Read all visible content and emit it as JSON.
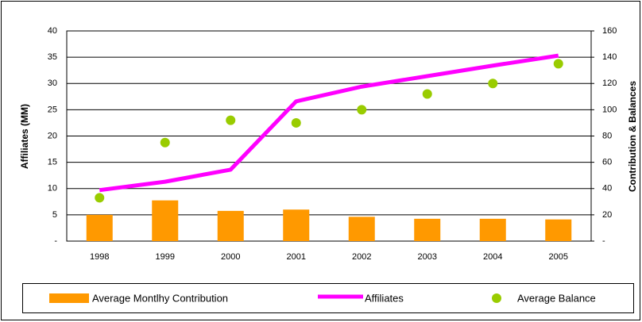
{
  "chart_data": {
    "type": "combo",
    "categories": [
      "1998",
      "1999",
      "2000",
      "2001",
      "2002",
      "2003",
      "2004",
      "2005"
    ],
    "ylabel": "Affiliates (MM)",
    "y2label": "Contribution & Balances",
    "ylim": [
      0,
      40
    ],
    "yticks": [
      {
        "value": 0,
        "label": "-"
      },
      5,
      10,
      15,
      20,
      25,
      30,
      35,
      40
    ],
    "y2lim": [
      0,
      160
    ],
    "y2ticks": [
      {
        "value": 0,
        "label": "-"
      },
      20,
      40,
      60,
      80,
      100,
      120,
      140,
      160
    ],
    "grid": true,
    "legend": "bottom",
    "series": [
      {
        "name": "Average Montlhy Contribution",
        "type": "bar",
        "color": "#ff9900",
        "axis": "y2",
        "values": [
          20,
          31,
          23,
          24,
          18.5,
          17,
          17,
          16.5
        ]
      },
      {
        "name": "Affiliates",
        "type": "line",
        "color": "#ff00ff",
        "values": [
          9.7,
          11.3,
          13.6,
          26.6,
          29.4,
          31.4,
          33.4,
          35.3
        ]
      },
      {
        "name": "Average Balance",
        "type": "scatter",
        "color": "#99cc00",
        "axis": "y2",
        "values": [
          33,
          75,
          92,
          90,
          100,
          112,
          120,
          135
        ]
      }
    ]
  }
}
